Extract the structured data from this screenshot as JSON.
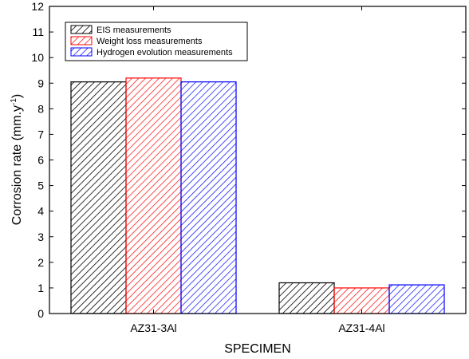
{
  "chart_data": {
    "type": "bar",
    "categories": [
      "AZ31-3Al",
      "AZ31-4Al"
    ],
    "series": [
      {
        "name": "EIS measurements",
        "values": [
          9.05,
          1.2
        ],
        "color": "#000000"
      },
      {
        "name": "Weight loss measurements",
        "values": [
          9.2,
          1.0
        ],
        "color": "#ff0000"
      },
      {
        "name": "Hydrogen evolution measurements",
        "values": [
          9.05,
          1.12
        ],
        "color": "#0000ff"
      }
    ],
    "xlabel": "SPECIMEN",
    "ylabel_main": "Corrosion rate (mm.y",
    "ylabel_sup": "-1",
    "ylabel_close": ")",
    "ylim": [
      0,
      12
    ],
    "yticks": [
      0,
      1,
      2,
      3,
      4,
      5,
      6,
      7,
      8,
      9,
      10,
      11,
      12
    ],
    "legend_position": "top-left",
    "fill": "diagonal hatch",
    "grid": false
  }
}
